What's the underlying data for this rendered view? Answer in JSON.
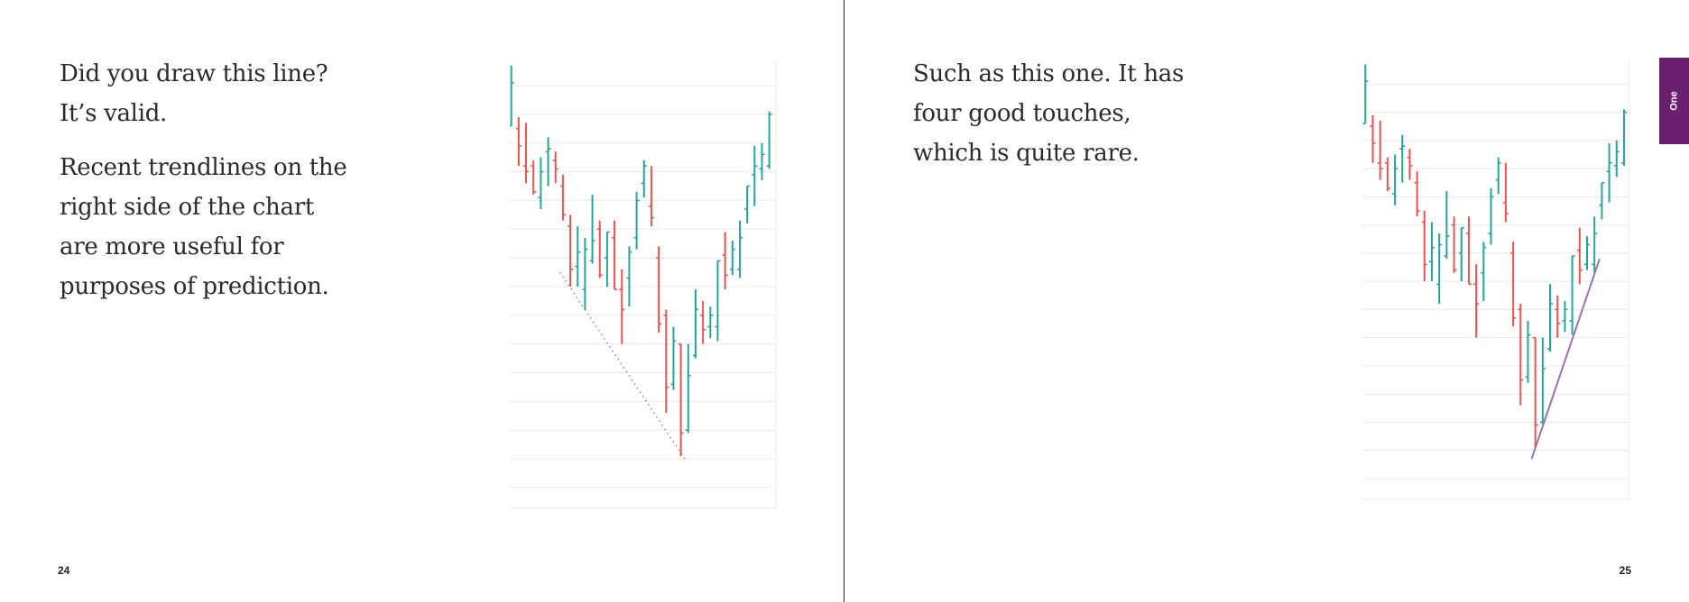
{
  "left_page": {
    "paragraphs": [
      "Did you draw this line? It’s valid.",
      "Recent trendlines on the right side of the chart are more useful for purposes of prediction."
    ],
    "page_number": "24"
  },
  "right_page": {
    "paragraphs": [
      "Such as this one. It has four good touches, which is quite rare."
    ],
    "page_number": "25",
    "chapter_tab": "One"
  },
  "colors": {
    "up": "#26a69a",
    "down": "#ef5350",
    "tab": "#6a1f6e",
    "trendline_left": "#8a8a8a",
    "trendline_right": "#9b72b0"
  },
  "chart_data": [
    {
      "type": "ohlc",
      "grid": true,
      "ylim": [
        0.2,
        15.9
      ],
      "bar_format": [
        "open",
        "high",
        "low",
        "close"
      ],
      "bars": [
        [
          13.6,
          15.7,
          13.6,
          15.1
        ],
        [
          13.5,
          13.9,
          12.2,
          12.9
        ],
        [
          12.2,
          13.7,
          11.6,
          12.0
        ],
        [
          12.2,
          12.4,
          11.2,
          11.3
        ],
        [
          11.1,
          12.5,
          10.7,
          12.0
        ],
        [
          12.7,
          13.2,
          11.5,
          12.8
        ],
        [
          12.4,
          12.7,
          11.6,
          12.1
        ],
        [
          11.5,
          11.9,
          10.3,
          10.5
        ],
        [
          10.1,
          10.5,
          8.0,
          8.6
        ],
        [
          8.7,
          10.1,
          8.0,
          9.2
        ],
        [
          7.9,
          9.7,
          7.2,
          9.3
        ],
        [
          8.9,
          11.2,
          8.8,
          9.6
        ],
        [
          10.0,
          10.3,
          8.3,
          8.4
        ],
        [
          9.0,
          9.9,
          8.0,
          9.9
        ],
        [
          9.7,
          10.3,
          7.9,
          7.9
        ],
        [
          7.9,
          8.6,
          6.0,
          7.2
        ],
        [
          8.3,
          9.4,
          7.3,
          9.2
        ],
        [
          9.7,
          11.3,
          9.3,
          11.0
        ],
        [
          11.6,
          12.4,
          11.1,
          12.2
        ],
        [
          10.8,
          12.2,
          10.1,
          10.4
        ],
        [
          9.0,
          9.4,
          6.4,
          6.7
        ],
        [
          7.0,
          7.2,
          3.6,
          4.5
        ],
        [
          4.6,
          6.6,
          4.4,
          6.1
        ],
        [
          6.0,
          6.0,
          2.1,
          2.9
        ],
        [
          3.0,
          6.0,
          2.9,
          4.9
        ],
        [
          5.6,
          7.9,
          5.5,
          7.2
        ],
        [
          7.0,
          7.5,
          6.0,
          6.5
        ],
        [
          6.6,
          7.3,
          6.2,
          7.0
        ],
        [
          6.6,
          8.9,
          6.1,
          8.9
        ],
        [
          9.1,
          9.9,
          7.9,
          8.4
        ],
        [
          8.6,
          9.6,
          8.4,
          9.3
        ],
        [
          8.6,
          10.3,
          8.3,
          9.7
        ],
        [
          10.7,
          11.5,
          10.2,
          11.5
        ],
        [
          11.9,
          12.9,
          10.8,
          12.2
        ],
        [
          12.1,
          13.0,
          11.7,
          12.6
        ],
        [
          12.2,
          14.1,
          12.1,
          14.0
        ]
      ],
      "trendline": {
        "style": "dotted",
        "from": [
          7.6,
          8.5
        ],
        "to": [
          24.8,
          1.9
        ]
      }
    },
    {
      "type": "ohlc",
      "grid": true,
      "ylim": [
        0.2,
        15.9
      ],
      "bar_format": [
        "open",
        "high",
        "low",
        "close"
      ],
      "bars": [
        [
          13.6,
          15.7,
          13.6,
          15.1
        ],
        [
          13.5,
          13.9,
          12.2,
          12.9
        ],
        [
          12.2,
          13.7,
          11.6,
          12.0
        ],
        [
          12.2,
          12.4,
          11.2,
          11.3
        ],
        [
          11.1,
          12.5,
          10.7,
          12.0
        ],
        [
          12.7,
          13.2,
          11.5,
          12.8
        ],
        [
          12.4,
          12.7,
          11.6,
          12.1
        ],
        [
          11.5,
          11.9,
          10.3,
          10.5
        ],
        [
          10.1,
          10.5,
          8.0,
          8.6
        ],
        [
          8.7,
          10.1,
          8.0,
          9.2
        ],
        [
          7.9,
          9.7,
          7.2,
          9.3
        ],
        [
          8.9,
          11.2,
          8.8,
          9.6
        ],
        [
          10.0,
          10.3,
          8.3,
          8.4
        ],
        [
          9.0,
          9.9,
          8.0,
          9.9
        ],
        [
          9.7,
          10.3,
          7.9,
          7.9
        ],
        [
          7.9,
          8.6,
          6.0,
          7.2
        ],
        [
          8.3,
          9.4,
          7.3,
          9.2
        ],
        [
          9.7,
          11.3,
          9.3,
          11.0
        ],
        [
          11.6,
          12.4,
          11.1,
          12.2
        ],
        [
          10.8,
          12.2,
          10.1,
          10.4
        ],
        [
          9.0,
          9.4,
          6.4,
          6.7
        ],
        [
          7.0,
          7.2,
          3.6,
          4.5
        ],
        [
          4.6,
          6.6,
          4.4,
          6.1
        ],
        [
          6.0,
          6.0,
          2.1,
          2.9
        ],
        [
          3.0,
          6.0,
          2.9,
          4.9
        ],
        [
          5.6,
          7.9,
          5.5,
          7.2
        ],
        [
          7.0,
          7.5,
          6.0,
          6.5
        ],
        [
          6.6,
          7.3,
          6.2,
          7.0
        ],
        [
          6.6,
          8.9,
          6.1,
          8.9
        ],
        [
          9.1,
          9.9,
          7.9,
          8.4
        ],
        [
          8.6,
          9.6,
          8.4,
          9.3
        ],
        [
          8.6,
          10.3,
          8.3,
          9.7
        ],
        [
          10.7,
          11.5,
          10.2,
          11.5
        ],
        [
          11.9,
          12.9,
          10.8,
          12.2
        ],
        [
          12.1,
          13.0,
          11.7,
          12.6
        ],
        [
          12.2,
          14.1,
          12.1,
          14.0
        ]
      ],
      "trendline": {
        "style": "solid",
        "from": [
          23.5,
          1.7
        ],
        "to": [
          32.7,
          8.8
        ]
      }
    }
  ]
}
